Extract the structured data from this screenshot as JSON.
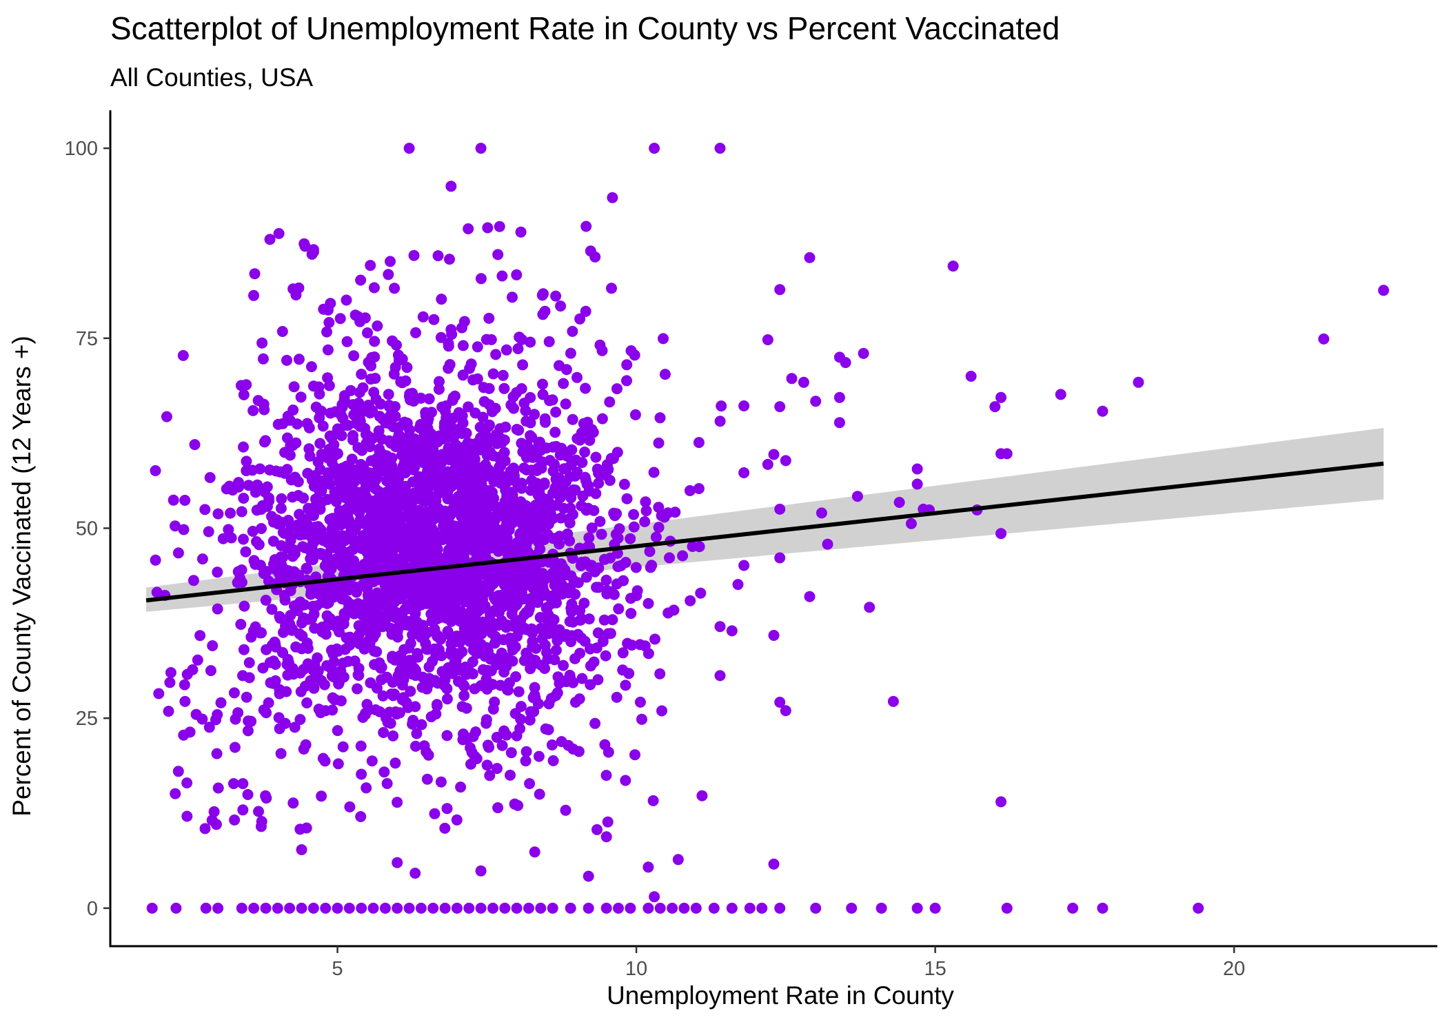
{
  "chart_data": {
    "type": "scatter",
    "title": "Scatterplot of Unemployment Rate in County vs Percent Vaccinated",
    "subtitle": "All Counties, USA",
    "xlabel": "Unemployment Rate in County",
    "ylabel": "Percent of County Vaccinated (12 Years +)",
    "xlim": [
      1.2,
      23.4
    ],
    "ylim": [
      -5,
      105
    ],
    "xticks": [
      5,
      10,
      15,
      20
    ],
    "yticks": [
      0,
      25,
      50,
      75,
      100
    ],
    "grid": false,
    "point_color": "#8A00EA",
    "trend": {
      "x": [
        1.8,
        22.5
      ],
      "y": [
        40.5,
        58.5
      ],
      "color": "#000000"
    },
    "ci_band": {
      "x": [
        1.8,
        22.5
      ],
      "lower": [
        39.0,
        53.8
      ],
      "upper": [
        42.2,
        63.2
      ],
      "color": "#cccccc"
    },
    "notable_points": [
      [
        6.2,
        100
      ],
      [
        7.4,
        100
      ],
      [
        10.3,
        100
      ],
      [
        11.4,
        100
      ],
      [
        9.6,
        93.5
      ],
      [
        6.9,
        95.0
      ],
      [
        22.5,
        81.3
      ],
      [
        21.5,
        74.9
      ],
      [
        18.4,
        69.2
      ],
      [
        17.8,
        65.4
      ],
      [
        17.1,
        67.6
      ],
      [
        15.3,
        84.5
      ],
      [
        15.6,
        70.0
      ],
      [
        16.0,
        66.0
      ],
      [
        16.1,
        67.2
      ],
      [
        16.1,
        59.8
      ],
      [
        16.2,
        59.8
      ],
      [
        16.1,
        49.3
      ],
      [
        16.1,
        14.0
      ],
      [
        15.7,
        52.4
      ],
      [
        14.7,
        57.8
      ],
      [
        14.7,
        55.8
      ],
      [
        14.8,
        52.5
      ],
      [
        14.9,
        52.4
      ],
      [
        14.6,
        50.6
      ],
      [
        14.4,
        53.4
      ],
      [
        13.8,
        73.0
      ],
      [
        13.4,
        72.5
      ],
      [
        13.5,
        71.8
      ],
      [
        13.4,
        67.2
      ],
      [
        13.4,
        63.9
      ],
      [
        13.7,
        54.2
      ],
      [
        13.9,
        39.6
      ],
      [
        14.3,
        27.2
      ],
      [
        13.2,
        47.9
      ],
      [
        13.1,
        52.0
      ],
      [
        12.9,
        85.6
      ],
      [
        13.0,
        66.7
      ],
      [
        12.8,
        69.2
      ],
      [
        12.6,
        69.7
      ],
      [
        12.4,
        81.4
      ],
      [
        12.4,
        66.0
      ],
      [
        12.5,
        58.9
      ],
      [
        12.3,
        59.7
      ],
      [
        12.2,
        58.4
      ],
      [
        12.4,
        52.5
      ],
      [
        12.4,
        46.1
      ],
      [
        12.9,
        41.0
      ],
      [
        12.3,
        35.9
      ],
      [
        12.4,
        27.1
      ],
      [
        12.5,
        26.0
      ],
      [
        12.3,
        5.8
      ],
      [
        12.2,
        74.8
      ],
      [
        11.8,
        66.1
      ],
      [
        11.8,
        57.3
      ],
      [
        11.8,
        45.1
      ],
      [
        11.7,
        42.6
      ],
      [
        11.6,
        36.5
      ],
      [
        11.4,
        30.6
      ],
      [
        11.1,
        14.8
      ],
      [
        10.7,
        6.4
      ],
      [
        10.2,
        5.4
      ],
      [
        10.3,
        1.5
      ],
      [
        9.2,
        4.2
      ],
      [
        9.5,
        9.4
      ],
      [
        7.4,
        4.9
      ],
      [
        6.3,
        4.6
      ],
      [
        6.0,
        6.0
      ],
      [
        4.4,
        7.7
      ],
      [
        8.3,
        7.4
      ]
    ],
    "zero_row_x": [
      1.9,
      2.3,
      2.8,
      3.0,
      3.4,
      3.6,
      3.8,
      4.0,
      4.2,
      4.4,
      4.6,
      4.8,
      5.0,
      5.2,
      5.4,
      5.6,
      5.8,
      6.0,
      6.2,
      6.4,
      6.6,
      6.8,
      7.0,
      7.2,
      7.4,
      7.6,
      7.8,
      8.0,
      8.2,
      8.4,
      8.6,
      8.9,
      9.2,
      9.5,
      9.7,
      9.9,
      10.2,
      10.4,
      10.6,
      10.8,
      11.0,
      11.3,
      11.6,
      11.9,
      12.1,
      12.4,
      13.0,
      13.6,
      14.1,
      14.7,
      15.0,
      16.2,
      17.3,
      17.8,
      19.4
    ]
  }
}
